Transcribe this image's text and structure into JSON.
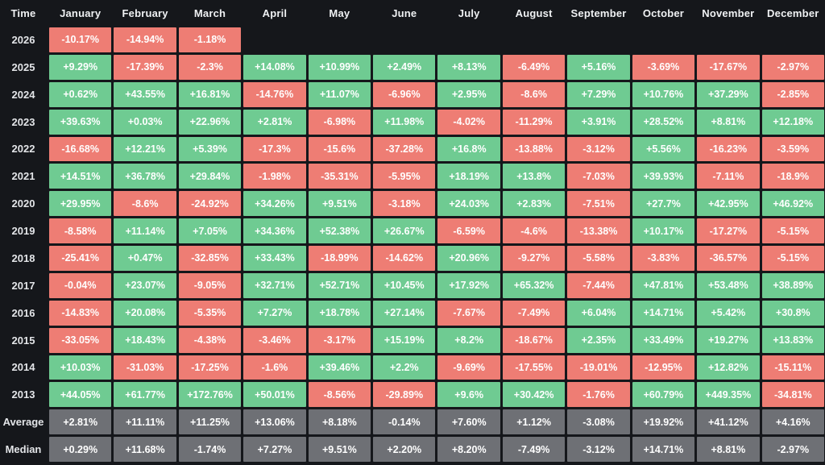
{
  "chart_data": {
    "type": "heatmap",
    "corner_label": "Time",
    "columns": [
      "January",
      "February",
      "March",
      "April",
      "May",
      "June",
      "July",
      "August",
      "September",
      "October",
      "November",
      "December"
    ],
    "rows": [
      {
        "label": "2026",
        "kind": "year",
        "values": [
          "-10.17%",
          "-14.94%",
          "-1.18%",
          null,
          null,
          null,
          null,
          null,
          null,
          null,
          null,
          null
        ]
      },
      {
        "label": "2025",
        "kind": "year",
        "values": [
          "+9.29%",
          "-17.39%",
          "-2.3%",
          "+14.08%",
          "+10.99%",
          "+2.49%",
          "+8.13%",
          "-6.49%",
          "+5.16%",
          "-3.69%",
          "-17.67%",
          "-2.97%"
        ]
      },
      {
        "label": "2024",
        "kind": "year",
        "values": [
          "+0.62%",
          "+43.55%",
          "+16.81%",
          "-14.76%",
          "+11.07%",
          "-6.96%",
          "+2.95%",
          "-8.6%",
          "+7.29%",
          "+10.76%",
          "+37.29%",
          "-2.85%"
        ]
      },
      {
        "label": "2023",
        "kind": "year",
        "values": [
          "+39.63%",
          "+0.03%",
          "+22.96%",
          "+2.81%",
          "-6.98%",
          "+11.98%",
          "-4.02%",
          "-11.29%",
          "+3.91%",
          "+28.52%",
          "+8.81%",
          "+12.18%"
        ]
      },
      {
        "label": "2022",
        "kind": "year",
        "values": [
          "-16.68%",
          "+12.21%",
          "+5.39%",
          "-17.3%",
          "-15.6%",
          "-37.28%",
          "+16.8%",
          "-13.88%",
          "-3.12%",
          "+5.56%",
          "-16.23%",
          "-3.59%"
        ]
      },
      {
        "label": "2021",
        "kind": "year",
        "values": [
          "+14.51%",
          "+36.78%",
          "+29.84%",
          "-1.98%",
          "-35.31%",
          "-5.95%",
          "+18.19%",
          "+13.8%",
          "-7.03%",
          "+39.93%",
          "-7.11%",
          "-18.9%"
        ]
      },
      {
        "label": "2020",
        "kind": "year",
        "values": [
          "+29.95%",
          "-8.6%",
          "-24.92%",
          "+34.26%",
          "+9.51%",
          "-3.18%",
          "+24.03%",
          "+2.83%",
          "-7.51%",
          "+27.7%",
          "+42.95%",
          "+46.92%"
        ]
      },
      {
        "label": "2019",
        "kind": "year",
        "values": [
          "-8.58%",
          "+11.14%",
          "+7.05%",
          "+34.36%",
          "+52.38%",
          "+26.67%",
          "-6.59%",
          "-4.6%",
          "-13.38%",
          "+10.17%",
          "-17.27%",
          "-5.15%"
        ]
      },
      {
        "label": "2018",
        "kind": "year",
        "values": [
          "-25.41%",
          "+0.47%",
          "-32.85%",
          "+33.43%",
          "-18.99%",
          "-14.62%",
          "+20.96%",
          "-9.27%",
          "-5.58%",
          "-3.83%",
          "-36.57%",
          "-5.15%"
        ]
      },
      {
        "label": "2017",
        "kind": "year",
        "values": [
          "-0.04%",
          "+23.07%",
          "-9.05%",
          "+32.71%",
          "+52.71%",
          "+10.45%",
          "+17.92%",
          "+65.32%",
          "-7.44%",
          "+47.81%",
          "+53.48%",
          "+38.89%"
        ]
      },
      {
        "label": "2016",
        "kind": "year",
        "values": [
          "-14.83%",
          "+20.08%",
          "-5.35%",
          "+7.27%",
          "+18.78%",
          "+27.14%",
          "-7.67%",
          "-7.49%",
          "+6.04%",
          "+14.71%",
          "+5.42%",
          "+30.8%"
        ]
      },
      {
        "label": "2015",
        "kind": "year",
        "values": [
          "-33.05%",
          "+18.43%",
          "-4.38%",
          "-3.46%",
          "-3.17%",
          "+15.19%",
          "+8.2%",
          "-18.67%",
          "+2.35%",
          "+33.49%",
          "+19.27%",
          "+13.83%"
        ]
      },
      {
        "label": "2014",
        "kind": "year",
        "values": [
          "+10.03%",
          "-31.03%",
          "-17.25%",
          "-1.6%",
          "+39.46%",
          "+2.2%",
          "-9.69%",
          "-17.55%",
          "-19.01%",
          "-12.95%",
          "+12.82%",
          "-15.11%"
        ]
      },
      {
        "label": "2013",
        "kind": "year",
        "values": [
          "+44.05%",
          "+61.77%",
          "+172.76%",
          "+50.01%",
          "-8.56%",
          "-29.89%",
          "+9.6%",
          "+30.42%",
          "-1.76%",
          "+60.79%",
          "+449.35%",
          "-34.81%"
        ]
      },
      {
        "label": "Average",
        "kind": "summary",
        "values": [
          "+2.81%",
          "+11.11%",
          "+11.25%",
          "+13.06%",
          "+8.18%",
          "-0.14%",
          "+7.60%",
          "+1.12%",
          "-3.08%",
          "+19.92%",
          "+41.12%",
          "+4.16%"
        ]
      },
      {
        "label": "Median",
        "kind": "summary",
        "values": [
          "+0.29%",
          "+11.68%",
          "-1.74%",
          "+7.27%",
          "+9.51%",
          "+2.20%",
          "+8.20%",
          "-7.49%",
          "-3.12%",
          "+14.71%",
          "+8.81%",
          "-2.97%"
        ]
      }
    ],
    "colors": {
      "positive": "#6fcb92",
      "negative": "#ee7d74",
      "neutral": "#6e7075",
      "background": "#15171b",
      "cell_text": "#ffffff",
      "header_text": "#eff1f3",
      "label_text": "#e3e5e8"
    },
    "legend_position": "none",
    "grid": false
  }
}
